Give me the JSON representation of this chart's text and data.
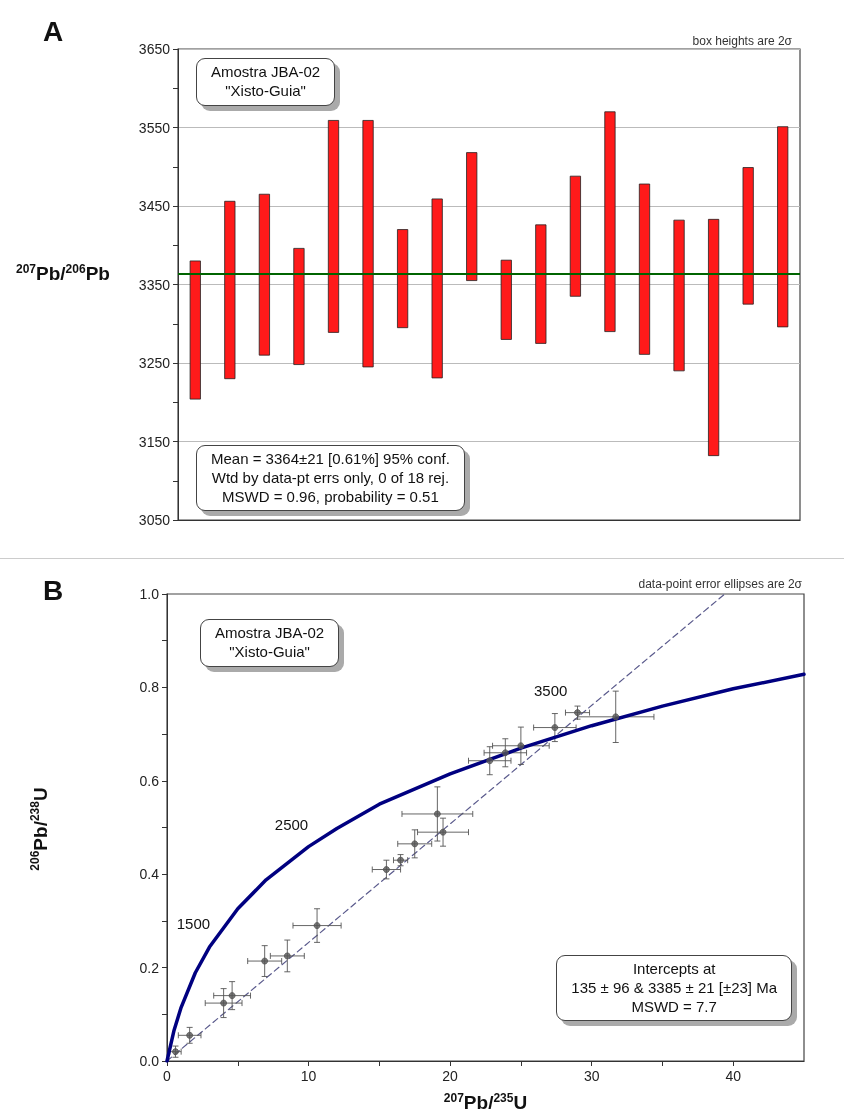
{
  "chart_data": [
    {
      "type": "bar",
      "title": "A",
      "ylabel": "$^{207}$Pb/$^{206}$Pb",
      "categories": [
        null,
        null,
        null,
        null,
        null,
        null,
        null,
        null,
        null,
        null,
        null,
        null,
        null,
        null,
        null,
        null,
        null,
        null
      ],
      "values": [
        176,
        226,
        205,
        148,
        270,
        314,
        125,
        228,
        163,
        101,
        151,
        153,
        280,
        217,
        192,
        301,
        174,
        255
      ],
      "base": [
        3204,
        3230,
        3260,
        3248,
        3289,
        3245,
        3295,
        3231,
        3355,
        3280,
        3275,
        3335,
        3290,
        3261,
        3240,
        3132,
        3325,
        3296
      ],
      "color": "#ff1a1a",
      "ylim": [
        3050,
        3650
      ],
      "yticks": [
        3050,
        {
          "value": 3100,
          "label": null
        },
        3150,
        {
          "value": 3200,
          "label": null
        },
        3250,
        {
          "value": 3300,
          "label": null
        },
        3350,
        {
          "value": 3400,
          "label": null
        },
        3450,
        {
          "value": 3500,
          "label": null
        },
        3550,
        {
          "value": 3600,
          "label": null
        },
        3650
      ],
      "grid": "y",
      "tick_labels": "y",
      "ref_lines": [
        {
          "axis": "y",
          "value": 3364,
          "color": "#006400"
        }
      ],
      "annotations": [
        "box heights are 2σ",
        "Amostra JBA-02\n\"Xisto-Guia\"",
        "Mean = 3364±21  [0.61%]  95% conf.\nWtd by data-pt errs only, 0 of 18 rej.\nMSWD = 0.96, probability = 0.51"
      ]
    },
    {
      "type": "line",
      "title": "B",
      "xlabel": "$^{207}$Pb/$^{235}$U",
      "ylabel": "$^{206}$Pb/$^{238}$U",
      "xlim": [
        0,
        45
      ],
      "ylim": [
        0,
        1.0
      ],
      "xticks": [
        0,
        {
          "value": 5,
          "label": null
        },
        10,
        {
          "value": 15,
          "label": null
        },
        20,
        {
          "value": 25,
          "label": null
        },
        30,
        {
          "value": 35,
          "label": null
        },
        40
      ],
      "yticks": [
        {
          "value": 0,
          "label": "0.0"
        },
        {
          "value": 0.1,
          "label": null
        },
        0.2,
        {
          "value": 0.3,
          "label": null
        },
        0.4,
        {
          "value": 0.5,
          "label": null
        },
        0.6,
        {
          "value": 0.7,
          "label": null
        },
        0.8,
        {
          "value": 0.9,
          "label": null
        },
        {
          "value": 1.0,
          "label": "1.0"
        }
      ],
      "series": [
        {
          "color": "#000080",
          "line_style": "solid",
          "x": [
            0,
            0.5,
            1,
            2,
            3,
            5,
            7,
            10,
            12,
            15,
            20,
            25,
            30,
            35,
            40,
            45
          ],
          "values": [
            0,
            0.066,
            0.115,
            0.189,
            0.244,
            0.326,
            0.388,
            0.459,
            0.498,
            0.55,
            0.615,
            0.67,
            0.718,
            0.76,
            0.797,
            0.828
          ]
        },
        {
          "color": "#5a5a8c",
          "line_style": "dashed",
          "x": [
            0,
            39.4
          ],
          "values": [
            0,
            1.0
          ]
        },
        {
          "type": "scatter",
          "marker": "circle",
          "color": "#555555",
          "x": [
            0.6,
            1.6,
            4.0,
            4.6,
            6.9,
            8.5,
            10.6,
            15.5,
            16.5,
            17.5,
            19.5,
            19.1,
            22.8,
            23.9,
            25,
            27.4,
            29.0,
            31.7
          ],
          "values": [
            0.02,
            0.055,
            0.124,
            0.14,
            0.214,
            0.225,
            0.29,
            0.41,
            0.43,
            0.465,
            0.49,
            0.529,
            0.643,
            0.66,
            0.675,
            0.714,
            0.746,
            0.737
          ],
          "xerrors": [
            0.4,
            0.8,
            1.3,
            1.3,
            1.2,
            1.2,
            1.7,
            1.0,
            0.5,
            1.2,
            1.8,
            2.5,
            1.5,
            1.5,
            2,
            1.5,
            0.85,
            2.7
          ],
          "errors": [
            0.012,
            0.017,
            0.031,
            0.03,
            0.033,
            0.034,
            0.036,
            0.02,
            0.012,
            0.03,
            0.03,
            0.058,
            0.03,
            0.03,
            0.04,
            0.03,
            0.014,
            0.055
          ]
        }
      ],
      "annotations": [
        "data-point error ellipses are 2σ",
        "Amostra JBA-02\n\"Xisto-Guia\"",
        "Intercepts at\n135 ± 96 & 3385 ± 21   [±23]  Ma\nMSWD = 7.7",
        {
          "text": "1500",
          "x": 3.47,
          "y": 0.262
        },
        {
          "text": "2500",
          "x": 10.4,
          "y": 0.474
        },
        {
          "text": "3500",
          "x": 30.4,
          "y": 0.721
        }
      ]
    }
  ]
}
